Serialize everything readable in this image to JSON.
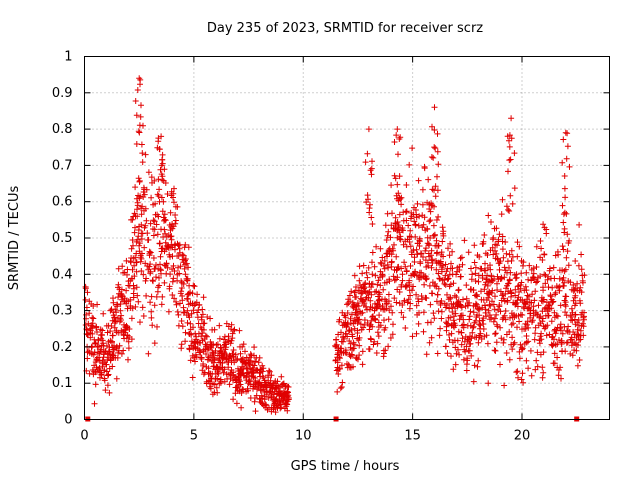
{
  "chart_data": {
    "type": "scatter",
    "title": "Day 235 of 2023, SRMTID for receiver scrz",
    "xlabel": "GPS time / hours",
    "ylabel": "SRMTID / TECUs",
    "xlim": [
      0,
      24
    ],
    "ylim": [
      0,
      1
    ],
    "x_ticks": [
      0,
      5,
      10,
      15,
      20
    ],
    "x_tick_labels": [
      "0",
      "5",
      "10",
      "15",
      "20"
    ],
    "y_ticks": [
      0,
      0.1,
      0.2,
      0.3,
      0.4,
      0.5,
      0.6,
      0.7,
      0.8,
      0.9,
      1
    ],
    "y_tick_labels": [
      "0",
      "0.1",
      "0.2",
      "0.3",
      "0.4",
      "0.5",
      "0.6",
      "0.7",
      "0.8",
      "0.9",
      "1"
    ],
    "grid": true,
    "marker": "+",
    "color": "#e00000",
    "gap_markers_x": [
      0.15,
      11.5,
      22.5
    ],
    "envelope": [
      [
        0.1,
        0.25
      ],
      [
        0.5,
        0.2
      ],
      [
        1.0,
        0.18
      ],
      [
        1.5,
        0.26
      ],
      [
        2.0,
        0.3
      ],
      [
        2.5,
        0.58
      ],
      [
        3.0,
        0.45
      ],
      [
        3.5,
        0.5
      ],
      [
        4.0,
        0.48
      ],
      [
        4.5,
        0.4
      ],
      [
        5.0,
        0.27
      ],
      [
        5.5,
        0.2
      ],
      [
        6.0,
        0.14
      ],
      [
        6.5,
        0.17
      ],
      [
        7.0,
        0.14
      ],
      [
        7.5,
        0.13
      ],
      [
        8.0,
        0.11
      ],
      [
        8.5,
        0.07
      ],
      [
        9.0,
        0.06
      ],
      [
        9.3,
        0.06
      ],
      [
        11.5,
        0.18
      ],
      [
        12.0,
        0.23
      ],
      [
        12.5,
        0.3
      ],
      [
        13.0,
        0.32
      ],
      [
        13.5,
        0.35
      ],
      [
        14.0,
        0.4
      ],
      [
        14.5,
        0.5
      ],
      [
        15.0,
        0.42
      ],
      [
        15.5,
        0.48
      ],
      [
        16.0,
        0.45
      ],
      [
        16.5,
        0.35
      ],
      [
        17.0,
        0.3
      ],
      [
        17.5,
        0.28
      ],
      [
        18.0,
        0.32
      ],
      [
        18.5,
        0.36
      ],
      [
        19.0,
        0.38
      ],
      [
        19.5,
        0.33
      ],
      [
        20.0,
        0.28
      ],
      [
        20.5,
        0.3
      ],
      [
        21.0,
        0.32
      ],
      [
        21.5,
        0.3
      ],
      [
        22.0,
        0.34
      ],
      [
        22.5,
        0.3
      ],
      [
        22.8,
        0.3
      ]
    ],
    "spread": [
      [
        0.1,
        0.12
      ],
      [
        1.0,
        0.1
      ],
      [
        2.0,
        0.12
      ],
      [
        2.5,
        0.25
      ],
      [
        3.5,
        0.2
      ],
      [
        4.5,
        0.15
      ],
      [
        5.5,
        0.1
      ],
      [
        7.0,
        0.08
      ],
      [
        8.5,
        0.05
      ],
      [
        9.3,
        0.04
      ],
      [
        11.5,
        0.08
      ],
      [
        13.0,
        0.14
      ],
      [
        14.5,
        0.22
      ],
      [
        16.0,
        0.2
      ],
      [
        17.5,
        0.14
      ],
      [
        19.0,
        0.18
      ],
      [
        20.5,
        0.15
      ],
      [
        22.0,
        0.2
      ],
      [
        22.8,
        0.15
      ]
    ],
    "peaks": [
      {
        "x": 2.5,
        "y": 0.94
      },
      {
        "x": 3.5,
        "y": 0.78
      },
      {
        "x": 13.0,
        "y": 0.8
      },
      {
        "x": 14.3,
        "y": 0.8
      },
      {
        "x": 16.0,
        "y": 0.86
      },
      {
        "x": 19.5,
        "y": 0.83
      },
      {
        "x": 22.0,
        "y": 0.79
      }
    ]
  }
}
